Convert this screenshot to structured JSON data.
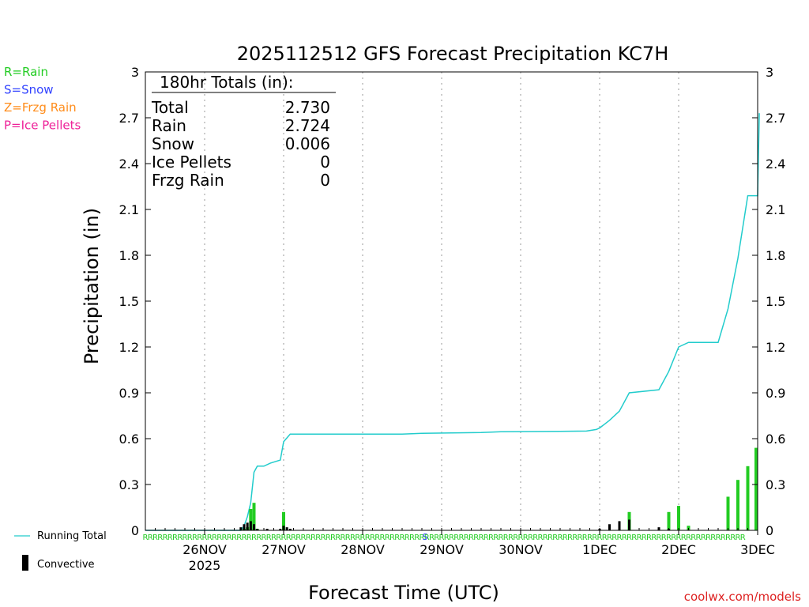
{
  "chart_data": {
    "type": "bar",
    "title": "2025112512 GFS Forecast Precipitation KC7H",
    "xlabel": "Forecast Time (UTC)",
    "ylabel": "Precipitation (in)",
    "ylim": [
      0,
      3
    ],
    "yticks": [
      "0",
      "0.3",
      "0.6",
      "0.9",
      "1.2",
      "1.5",
      "1.8",
      "2.1",
      "2.4",
      "2.7",
      "3"
    ],
    "xlim_hours": [
      -18,
      162
    ],
    "x_ticks": [
      {
        "hour": 0,
        "label": "26NOV",
        "sublabel": "2025"
      },
      {
        "hour": 24,
        "label": "27NOV"
      },
      {
        "hour": 48,
        "label": "28NOV"
      },
      {
        "hour": 72,
        "label": "29NOV"
      },
      {
        "hour": 96,
        "label": "30NOV"
      },
      {
        "hour": 120,
        "label": "1DEC"
      },
      {
        "hour": 144,
        "label": "2DEC"
      },
      {
        "hour": 168,
        "label": "3DEC"
      }
    ],
    "grid": "vertical dotted at each day",
    "precip_type_legend": [
      {
        "text": "R=Rain",
        "color": "#22cc22"
      },
      {
        "text": "S=Snow",
        "color": "#3344ff"
      },
      {
        "text": "Z=Frzg Rain",
        "color": "#ff8c1a"
      },
      {
        "text": "P=Ice Pellets",
        "color": "#ee2299"
      }
    ],
    "series_legend": [
      {
        "name": "Running Total",
        "color": "#22cccc"
      },
      {
        "name": "Convective",
        "color": "#000000"
      }
    ],
    "totals_box": {
      "header": "180hr Totals (in):",
      "rows": [
        {
          "label": "Total",
          "value": "2.730"
        },
        {
          "label": "Rain",
          "value": "2.724"
        },
        {
          "label": "Snow",
          "value": "0.006"
        },
        {
          "label": "Ice Pellets",
          "value": "0"
        },
        {
          "label": "Frzg Rain",
          "value": "0"
        }
      ]
    },
    "running_total": [
      {
        "h": -18,
        "v": 0
      },
      {
        "h": 11,
        "v": 0
      },
      {
        "h": 12,
        "v": 0.03
      },
      {
        "h": 13,
        "v": 0.09
      },
      {
        "h": 14,
        "v": 0.18
      },
      {
        "h": 15,
        "v": 0.38
      },
      {
        "h": 16,
        "v": 0.42
      },
      {
        "h": 18,
        "v": 0.42
      },
      {
        "h": 20,
        "v": 0.44
      },
      {
        "h": 23,
        "v": 0.46
      },
      {
        "h": 24,
        "v": 0.58
      },
      {
        "h": 26,
        "v": 0.63
      },
      {
        "h": 60,
        "v": 0.63
      },
      {
        "h": 66,
        "v": 0.635
      },
      {
        "h": 84,
        "v": 0.64
      },
      {
        "h": 90,
        "v": 0.645
      },
      {
        "h": 108,
        "v": 0.648
      },
      {
        "h": 116,
        "v": 0.65
      },
      {
        "h": 119,
        "v": 0.66
      },
      {
        "h": 120,
        "v": 0.67
      },
      {
        "h": 123,
        "v": 0.72
      },
      {
        "h": 126,
        "v": 0.78
      },
      {
        "h": 129,
        "v": 0.9
      },
      {
        "h": 138,
        "v": 0.92
      },
      {
        "h": 141,
        "v": 1.04
      },
      {
        "h": 144,
        "v": 1.2
      },
      {
        "h": 147,
        "v": 1.23
      },
      {
        "h": 156,
        "v": 1.23
      },
      {
        "h": 159,
        "v": 1.45
      },
      {
        "h": 162,
        "v": 1.78
      },
      {
        "h": 165,
        "v": 2.19
      },
      {
        "h": 168,
        "v": 2.19
      },
      {
        "h": 168.5,
        "v": 2.73
      }
    ],
    "rain_bars": [
      {
        "h": 12,
        "v": 0.01
      },
      {
        "h": 13,
        "v": 0.02
      },
      {
        "h": 14,
        "v": 0.14
      },
      {
        "h": 15,
        "v": 0.18
      },
      {
        "h": 16,
        "v": 0.01
      },
      {
        "h": 24,
        "v": 0.12
      },
      {
        "h": 129,
        "v": 0.12
      },
      {
        "h": 141,
        "v": 0.12
      },
      {
        "h": 144,
        "v": 0.16
      },
      {
        "h": 147,
        "v": 0.03
      },
      {
        "h": 159,
        "v": 0.22
      },
      {
        "h": 162,
        "v": 0.33
      },
      {
        "h": 165,
        "v": 0.42
      },
      {
        "h": 168,
        "v": 0.54
      }
    ],
    "convective_bars": [
      {
        "h": 11,
        "v": 0.02
      },
      {
        "h": 12,
        "v": 0.04
      },
      {
        "h": 13,
        "v": 0.05
      },
      {
        "h": 14,
        "v": 0.06
      },
      {
        "h": 15,
        "v": 0.04
      },
      {
        "h": 16,
        "v": 0.01
      },
      {
        "h": 19,
        "v": 0.01
      },
      {
        "h": 23,
        "v": 0.01
      },
      {
        "h": 24,
        "v": 0.03
      },
      {
        "h": 25,
        "v": 0.02
      },
      {
        "h": 26,
        "v": 0.01
      },
      {
        "h": 120,
        "v": 0.01
      },
      {
        "h": 123,
        "v": 0.04
      },
      {
        "h": 126,
        "v": 0.06
      },
      {
        "h": 129,
        "v": 0.07
      },
      {
        "h": 138,
        "v": 0.02
      },
      {
        "h": 141,
        "v": 0.01
      }
    ],
    "type_marks": [
      {
        "h_start": -18,
        "h_end": 164,
        "step": 1.5,
        "letter": "R",
        "color": "#22cc22"
      },
      {
        "h": 67,
        "letter": "S",
        "color": "#3344ff"
      }
    ],
    "credit": "coolwx.com/models"
  }
}
